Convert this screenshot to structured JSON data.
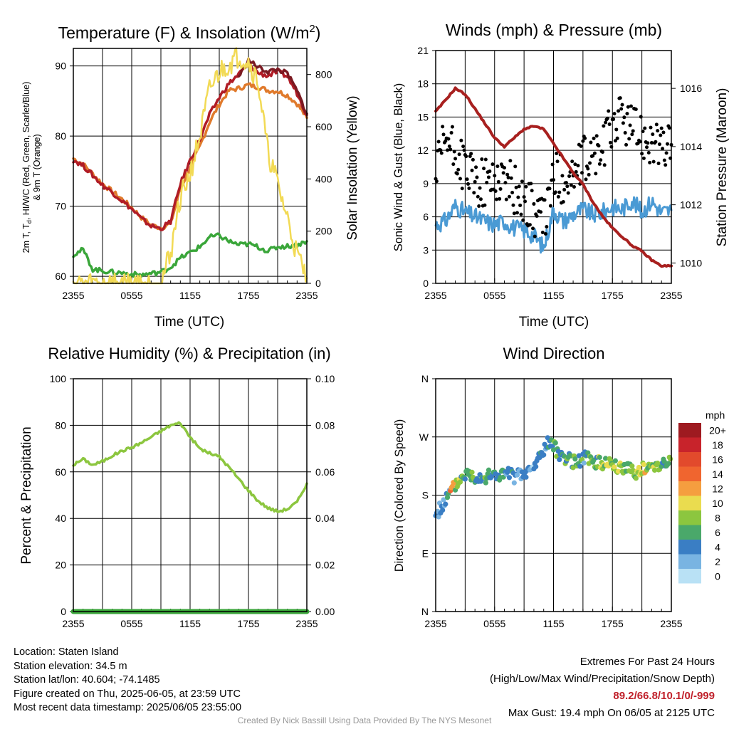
{
  "titles": {
    "temp_main": "Temperature (F) & Insolation (W/m",
    "temp_sup": "2",
    "temp_close": ")",
    "winds": "Winds (mph) & Pressure (mb)",
    "rh": "Relative Humidity (%) & Precipitation (in)",
    "wdir": "Wind Direction"
  },
  "axis_labels": {
    "temp_left_line1": "2m T, T",
    "temp_left_sub": "d",
    "temp_left_rest": ", HI/WC (Red, Green, Scarlet/Blue)",
    "temp_left_line2": "& 9m T (Orange)",
    "temp_right": "Solar Insolation (Yellow)",
    "winds_left": "Sonic Wind & Gust (Blue, Black)",
    "winds_right": "Station Pressure (Maroon)",
    "rh_left": "Percent & Precipitation",
    "wdir_left": "Direction (Colored By Speed)",
    "time": "Time (UTC)"
  },
  "chart_data": [
    {
      "type": "line",
      "title": "Temperature (F) & Insolation (W/m2)",
      "xlabel": "Time (UTC)",
      "ylabel": "2m T, Td, HI/WC (Red, Green, Scarlet/Blue) & 9m T (Orange)",
      "y2label": "Solar Insolation (Yellow)",
      "xticks": [
        "2355",
        "0555",
        "1155",
        "1755",
        "2355"
      ],
      "ylim": [
        59,
        92.5
      ],
      "yticks": [
        60,
        70,
        80,
        90
      ],
      "y2lim": [
        0,
        900
      ],
      "y2ticks": [
        0,
        200,
        400,
        600,
        800
      ],
      "grid": true,
      "series": [
        {
          "color": "#e07a2c",
          "axis": "left",
          "x": [
            0,
            1,
            2,
            3,
            4,
            5,
            6,
            7,
            8,
            9,
            10,
            11,
            12,
            13,
            14,
            15,
            16,
            17,
            18,
            19,
            20,
            21,
            22,
            23,
            24
          ],
          "y": [
            76.8,
            76,
            74.6,
            73.2,
            72.1,
            71,
            69.8,
            68.4,
            67.3,
            66.9,
            67.5,
            72.5,
            75.5,
            78.5,
            82,
            84.5,
            86.5,
            86.8,
            87.3,
            87,
            86.5,
            86.4,
            85.8,
            84.6,
            82.6
          ]
        },
        {
          "color": "#b01c26",
          "axis": "left",
          "x": [
            0,
            1,
            2,
            3,
            4,
            5,
            6,
            7,
            8,
            9,
            10,
            11,
            12,
            13,
            14,
            15,
            16,
            17,
            18,
            19,
            20,
            21,
            22,
            23,
            24
          ],
          "y": [
            76.6,
            75.8,
            74.4,
            73,
            72,
            70.8,
            69.6,
            68.2,
            67.2,
            66.8,
            67.8,
            73.2,
            76.5,
            79.5,
            83,
            85.5,
            87.5,
            88.8,
            90.3,
            89,
            88.6,
            89.2,
            88.5,
            86.1,
            83
          ]
        },
        {
          "color": "#7b1a22",
          "axis": "left",
          "x": [
            17,
            18,
            19,
            20,
            21,
            22,
            23,
            24
          ],
          "y": [
            88.5,
            90.8,
            89.8,
            89.2,
            89.5,
            88.9,
            86.4,
            83.2
          ]
        },
        {
          "color": "#3aa63a",
          "axis": "left",
          "x": [
            0,
            1,
            2,
            3,
            4,
            5,
            6,
            7,
            8,
            9,
            10,
            11,
            12,
            13,
            14,
            15,
            16,
            17,
            18,
            19,
            20,
            21,
            22,
            23,
            24
          ],
          "y": [
            63.1,
            63.8,
            61,
            60.8,
            60.6,
            60.5,
            60.3,
            60.2,
            60.4,
            60.6,
            61.3,
            62.6,
            63.4,
            64.2,
            65.6,
            65.8,
            65,
            64.5,
            64.6,
            64.2,
            63.6,
            64.2,
            64.3,
            64.5,
            65
          ]
        },
        {
          "color": "#f2da55",
          "axis": "right",
          "x": [
            0,
            1,
            2,
            3,
            4,
            5,
            6,
            7,
            8,
            9,
            10,
            11,
            12,
            13,
            14,
            15,
            16,
            17,
            18,
            19,
            20,
            21,
            22,
            23,
            24
          ],
          "y": [
            0,
            0,
            0,
            0,
            0,
            0,
            0,
            0,
            0,
            0,
            120,
            330,
            420,
            560,
            740,
            810,
            840,
            870,
            850,
            770,
            500,
            380,
            250,
            110,
            20
          ]
        }
      ]
    },
    {
      "type": "scatter",
      "title": "Winds (mph) & Pressure (mb)",
      "xlabel": "Time (UTC)",
      "ylabel": "Sonic Wind & Gust (Blue, Black)",
      "y2label": "Station Pressure (Maroon)",
      "xticks": [
        "2355",
        "0555",
        "1155",
        "1755",
        "2355"
      ],
      "ylim": [
        0,
        21
      ],
      "yticks": [
        0,
        3,
        6,
        9,
        12,
        15,
        18,
        21
      ],
      "y2lim": [
        1009.3,
        1017.3
      ],
      "y2ticks": [
        1010,
        1012,
        1014,
        1016
      ],
      "grid": true,
      "series": [
        {
          "name": "",
          "color": "#4a9ad4",
          "kind": "line",
          "x": [
            0,
            1,
            2,
            3,
            4,
            5,
            6,
            7,
            8,
            9,
            10,
            11,
            12,
            13,
            14,
            15,
            16,
            17,
            18,
            19,
            20,
            21,
            22,
            23,
            24
          ],
          "y": [
            5.3,
            5.6,
            7,
            6.4,
            6,
            5.6,
            5.3,
            5.6,
            5,
            4.8,
            4.3,
            3.2,
            6.6,
            5.6,
            6.2,
            6.7,
            6.2,
            6.4,
            6.9,
            6.7,
            7.5,
            6.4,
            7.4,
            6.4,
            6.6
          ]
        },
        {
          "name": "",
          "color": "#000000",
          "kind": "points",
          "x": [
            0,
            1,
            2,
            3,
            4,
            5,
            6,
            7,
            8,
            9,
            10,
            11,
            12,
            13,
            14,
            15,
            16,
            17,
            18,
            19,
            20,
            21,
            22,
            23,
            24
          ],
          "y": [
            9.5,
            13,
            11.5,
            10.5,
            9,
            9,
            9.5,
            9.5,
            8.5,
            7.5,
            6.5,
            5.5,
            9.5,
            9.5,
            9.5,
            11,
            11.5,
            12,
            14.5,
            15,
            14,
            13.5,
            13,
            12,
            12.5
          ]
        },
        {
          "name": "",
          "color": "#a8201f",
          "kind": "line",
          "axis": "right",
          "x": [
            0,
            1,
            2,
            3,
            4,
            5,
            6,
            7,
            8,
            9,
            10,
            11,
            12,
            13,
            14,
            15,
            16,
            17,
            18,
            19,
            20,
            21,
            22,
            23,
            24
          ],
          "y": [
            1015.2,
            1015.6,
            1016,
            1015.8,
            1015.3,
            1014.8,
            1014.3,
            1014,
            1014.3,
            1014.6,
            1014.7,
            1014.6,
            1014.1,
            1013.6,
            1013.1,
            1012.7,
            1012.1,
            1011.6,
            1011.2,
            1010.9,
            1010.6,
            1010.4,
            1010.1,
            1009.9,
            1009.9
          ]
        }
      ]
    },
    {
      "type": "line",
      "title": "Relative Humidity (%) & Precipitation (in)",
      "xlabel": "",
      "ylabel": "Percent & Precipitation",
      "xticks": [
        "2355",
        "0555",
        "1155",
        "1755",
        "2355"
      ],
      "ylim": [
        0,
        100
      ],
      "yticks": [
        0,
        20,
        40,
        60,
        80,
        100
      ],
      "y2lim": [
        0,
        0.1
      ],
      "y2ticks": [
        "0.00",
        "0.02",
        "0.04",
        "0.06",
        "0.08",
        "0.10"
      ],
      "grid": true,
      "series": [
        {
          "name": "",
          "color": "#8cc63f",
          "x": [
            0,
            1,
            2,
            3,
            4,
            5,
            6,
            7,
            8,
            9,
            10,
            11,
            12,
            13,
            14,
            15,
            16,
            17,
            18,
            19,
            20,
            21,
            22,
            23,
            24
          ],
          "y": [
            63,
            65.5,
            63,
            64.5,
            67,
            69,
            70.5,
            72.5,
            75,
            77.5,
            80,
            81,
            75,
            70,
            68,
            66.5,
            62,
            57,
            52,
            47.5,
            44.5,
            43,
            44,
            47,
            55
          ]
        },
        {
          "name": "",
          "color": "#3aa63a",
          "x": [
            0,
            24
          ],
          "y": [
            0,
            0
          ]
        }
      ]
    },
    {
      "type": "scatter",
      "title": "Wind Direction",
      "xlabel": "",
      "ylabel": "Direction (Colored By Speed)",
      "xticks": [
        "2355",
        "0555",
        "1155",
        "1755",
        "2355"
      ],
      "yticks": [
        "N",
        "E",
        "S",
        "W",
        "N"
      ],
      "ylim": [
        0,
        360
      ],
      "grid": true,
      "colorbar_unit": "mph",
      "colorbar_labels": [
        "20+",
        "18",
        "16",
        "14",
        "12",
        "10",
        "8",
        "6",
        "4",
        "2",
        "0"
      ],
      "colorbar_colors": [
        "#9e1a20",
        "#c8232b",
        "#e24a2c",
        "#f0652f",
        "#f59e3f",
        "#eadc4f",
        "#8cc63f",
        "#4aa86a",
        "#3a7ec4",
        "#79b4e2",
        "#b9e1f5"
      ],
      "points": {
        "x": [
          0,
          0.5,
          1,
          1.5,
          2,
          2.5,
          3,
          3.5,
          4,
          4.5,
          5,
          5.5,
          6,
          6.5,
          7,
          7.5,
          8,
          8.5,
          9,
          9.5,
          10,
          10.5,
          11,
          11.5,
          12,
          12.5,
          13,
          13.5,
          14,
          14.5,
          15,
          15.5,
          16,
          16.5,
          17,
          17.5,
          18,
          18.5,
          19,
          19.5,
          20,
          20.5,
          21,
          21.5,
          22,
          22.5,
          23,
          23.5,
          24
        ],
        "y": [
          150,
          160,
          172,
          185,
          195,
          205,
          213,
          212,
          208,
          210,
          207,
          210,
          211,
          210,
          212,
          213,
          208,
          210,
          212,
          217,
          222,
          238,
          250,
          262,
          255,
          245,
          240,
          235,
          232,
          230,
          238,
          236,
          233,
          230,
          228,
          235,
          225,
          222,
          220,
          225,
          220,
          215,
          222,
          218,
          224,
          228,
          230,
          232,
          230
        ],
        "speed": [
          3,
          3,
          4,
          12,
          8,
          6,
          6,
          7,
          4,
          5,
          6,
          4,
          5,
          6,
          4,
          4,
          4,
          3,
          4,
          2,
          4,
          4,
          3,
          5,
          7,
          4,
          6,
          5,
          7,
          6,
          4,
          8,
          6,
          8,
          8,
          8,
          8,
          8,
          7,
          7,
          8,
          9,
          10,
          7,
          8,
          8,
          6,
          7,
          6
        ]
      }
    }
  ],
  "info_left": {
    "location": "Location: Staten Island",
    "elevation": "Station elevation: 34.5 m",
    "latlon": "Station lat/lon: 40.604; -74.1485",
    "created": "Figure created on Thu, 2025-06-05, at 23:59 UTC",
    "recent": "Most recent data timestamp: 2025/06/05 23:55:00"
  },
  "info_right": {
    "line1": "Extremes For Past 24 Hours",
    "line2": "(High/Low/Max Wind/Precipitation/Snow Depth)",
    "values": "89.2/66.8/10.1/0/-999",
    "gust": "Max Gust: 19.4 mph On 06/05 at 2125 UTC"
  },
  "credit": "Created By Nick Bassill Using Data Provided By The NYS Mesonet"
}
